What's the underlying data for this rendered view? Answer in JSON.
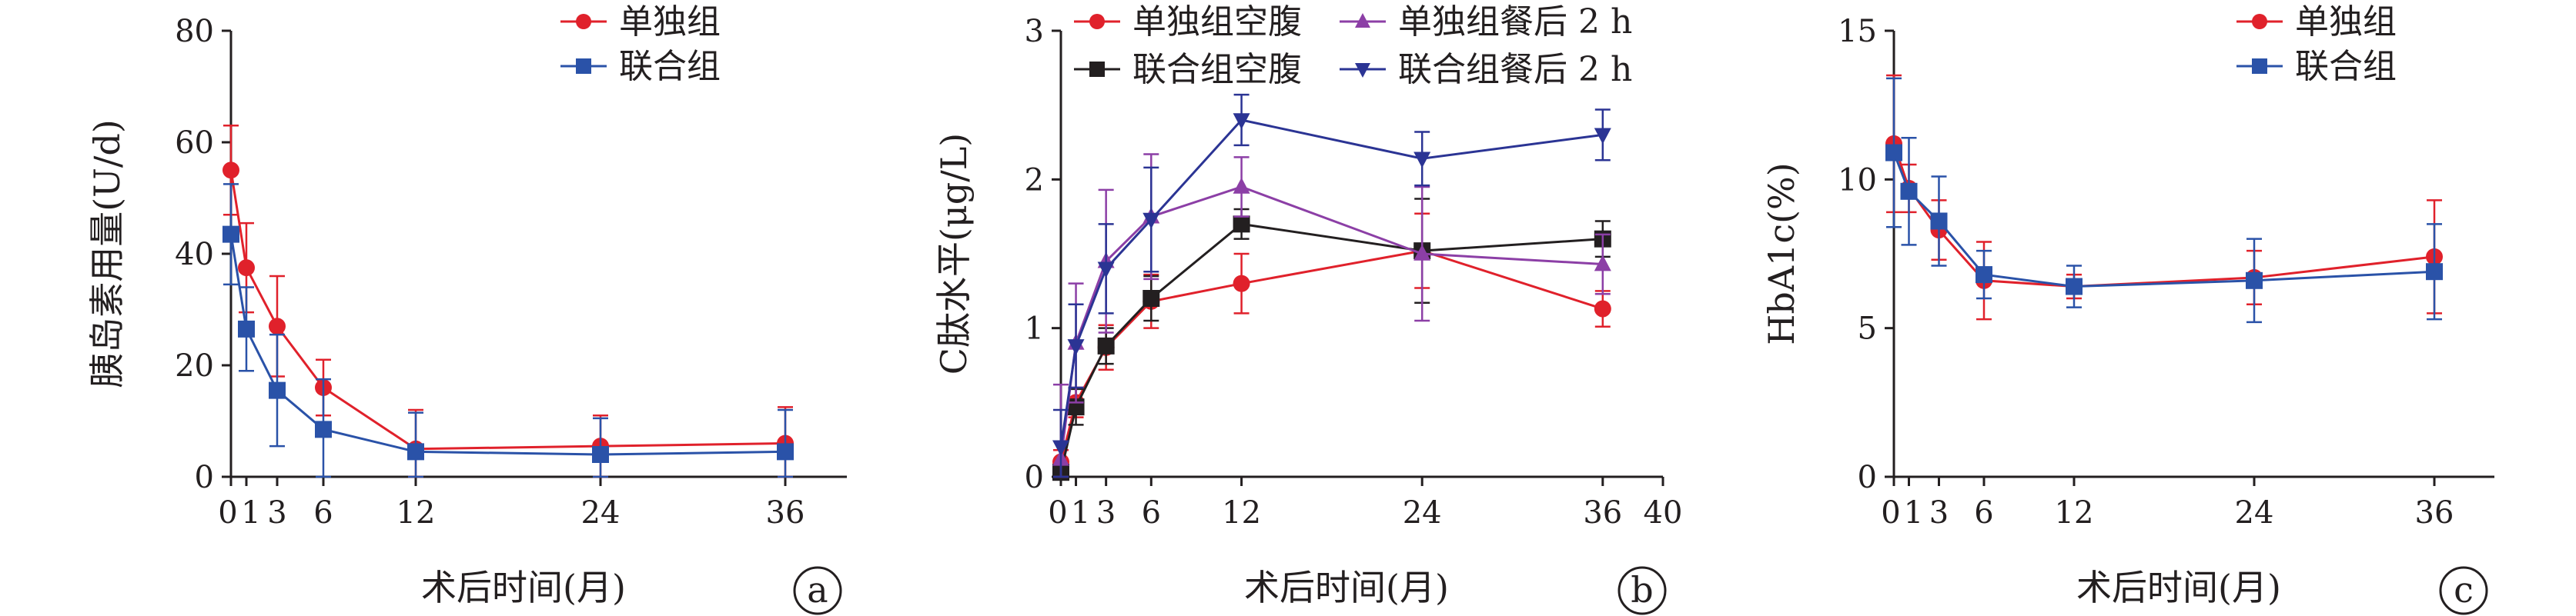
{
  "colors": {
    "red": "#e0212b",
    "blue": "#2a52a8",
    "black": "#231f20",
    "purple": "#8c3fa6",
    "navy": "#2b3494"
  },
  "chart_data": [
    {
      "id": "a",
      "type": "line",
      "panel_label": "a",
      "xlabel": "术后时间(月)",
      "ylabel": "胰岛素用量(U/d)",
      "xlim": [
        0,
        40
      ],
      "ylim": [
        0,
        80
      ],
      "xticks": [
        0,
        1,
        3,
        6,
        12,
        24,
        36
      ],
      "xtick_labels": [
        "0",
        "1",
        "3",
        "6",
        "12",
        "24",
        "36"
      ],
      "yticks": [
        0,
        20,
        40,
        60,
        80
      ],
      "x": [
        0,
        1,
        3,
        6,
        12,
        24,
        36
      ],
      "legend_position": "top-right",
      "series": [
        {
          "name": "单独组",
          "color": "#e0212b",
          "marker": "circle",
          "values": [
            55,
            37.5,
            27,
            16,
            5,
            5.5,
            6
          ],
          "err": [
            8,
            8,
            9,
            5,
            7,
            5.5,
            6.5
          ]
        },
        {
          "name": "联合组",
          "color": "#2a52a8",
          "marker": "square",
          "values": [
            43.5,
            26.5,
            15.5,
            8.5,
            4.5,
            4,
            4.5
          ],
          "err": [
            9,
            7.5,
            10,
            9,
            7,
            6.5,
            7.5
          ]
        }
      ]
    },
    {
      "id": "b",
      "type": "line",
      "panel_label": "b",
      "xlabel": "术后时间(月)",
      "ylabel": "C肽水平(μg/L)",
      "xlim": [
        0,
        40
      ],
      "ylim": [
        0,
        3
      ],
      "xticks": [
        0,
        1,
        3,
        6,
        12,
        24,
        36,
        40
      ],
      "xtick_labels": [
        "0",
        "1",
        "3",
        "6",
        "12",
        "24",
        "36",
        "40"
      ],
      "yticks": [
        0,
        1,
        2,
        3
      ],
      "x": [
        0,
        1,
        3,
        6,
        12,
        24,
        36
      ],
      "legend_position": "top",
      "series": [
        {
          "name": "单独组空腹",
          "color": "#e0212b",
          "marker": "circle",
          "values": [
            0.1,
            0.5,
            0.87,
            1.18,
            1.3,
            1.52,
            1.13
          ],
          "err": [
            0.08,
            0.1,
            0.15,
            0.18,
            0.2,
            0.25,
            0.12
          ]
        },
        {
          "name": "联合组空腹",
          "color": "#231f20",
          "marker": "square",
          "values": [
            0.03,
            0.47,
            0.88,
            1.2,
            1.7,
            1.52,
            1.6
          ],
          "err": [
            0.05,
            0.12,
            0.12,
            0.15,
            0.1,
            0.35,
            0.12
          ]
        },
        {
          "name": "单独组餐后 2 h",
          "color": "#8c3fa6",
          "marker": "triangle-up",
          "values": [
            0.12,
            0.9,
            1.45,
            1.75,
            1.95,
            1.5,
            1.43
          ],
          "err": [
            0.5,
            0.4,
            0.48,
            0.42,
            0.2,
            0.45,
            0.2
          ]
        },
        {
          "name": "联合组餐后 2 h",
          "color": "#2b3494",
          "marker": "triangle-down",
          "values": [
            0.2,
            0.88,
            1.4,
            1.73,
            2.4,
            2.14,
            2.3
          ],
          "err": [
            0.25,
            0.28,
            0.3,
            0.35,
            0.17,
            0.18,
            0.17
          ]
        }
      ]
    },
    {
      "id": "c",
      "type": "line",
      "panel_label": "c",
      "xlabel": "术后时间(月)",
      "ylabel": "HbA1c(%)",
      "xlim": [
        0,
        40
      ],
      "ylim": [
        0,
        15
      ],
      "xticks": [
        0,
        1,
        3,
        6,
        12,
        24,
        36
      ],
      "xtick_labels": [
        "0",
        "1",
        "3",
        "6",
        "12",
        "24",
        "36"
      ],
      "yticks": [
        0,
        5,
        10,
        15
      ],
      "x": [
        0,
        1,
        3,
        6,
        12,
        24,
        36
      ],
      "legend_position": "top-right",
      "series": [
        {
          "name": "单独组",
          "color": "#e0212b",
          "marker": "circle",
          "values": [
            11.2,
            9.7,
            8.3,
            6.6,
            6.4,
            6.7,
            7.4
          ],
          "err": [
            2.3,
            0.8,
            1.0,
            1.3,
            0.4,
            0.9,
            1.9
          ]
        },
        {
          "name": "联合组",
          "color": "#2a52a8",
          "marker": "square",
          "values": [
            10.9,
            9.6,
            8.6,
            6.8,
            6.4,
            6.6,
            6.9
          ],
          "err": [
            2.5,
            1.8,
            1.5,
            0.8,
            0.7,
            1.4,
            1.6
          ]
        }
      ]
    }
  ]
}
